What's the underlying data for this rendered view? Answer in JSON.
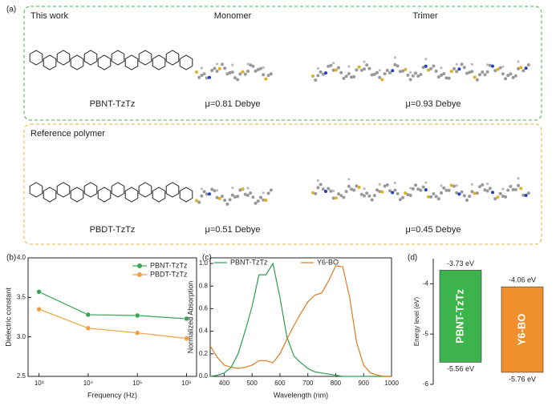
{
  "panel_labels": [
    "(a)",
    "(b)",
    "(c)",
    "(d)"
  ],
  "panel_a": {
    "top": {
      "heading": "This work",
      "molecule": "PBNT-TzTz",
      "monomer_title": "Monomer",
      "trimer_title": "Trimer",
      "monomer_dipole": "μ=0.81 Debye",
      "trimer_dipole": "μ=0.93 Debye"
    },
    "bottom": {
      "heading": "Reference polymer",
      "molecule": "PBDT-TzTz",
      "monomer_dipole": "μ=0.51 Debye",
      "trimer_dipole": "μ=0.45 Debye"
    }
  },
  "chart_data": [
    {
      "type": "line",
      "x_label": "Frequency (Hz)",
      "y_label": "Dielectric constant",
      "x_scale": "log",
      "x": [
        1000,
        10000,
        100000,
        1000000
      ],
      "series": [
        {
          "name": "PBNT-TzTz",
          "color": "#3aa655",
          "values": [
            3.57,
            3.28,
            3.27,
            3.23
          ]
        },
        {
          "name": "PBDT-TzTz",
          "color": "#f0a040",
          "values": [
            3.35,
            3.11,
            3.05,
            2.98
          ]
        }
      ],
      "xlim": [
        600,
        1600000
      ],
      "xticks": [
        {
          "value": 1000,
          "label": "10³"
        },
        {
          "value": 10000,
          "label": "10⁴"
        },
        {
          "value": 100000,
          "label": "10⁵"
        },
        {
          "value": 1000000,
          "label": "10⁶"
        }
      ],
      "ylim": [
        2.5,
        4.0
      ],
      "yticks": [
        {
          "value": 2.5,
          "label": "2.5"
        },
        {
          "value": 3.0,
          "label": "3.0"
        },
        {
          "value": 3.5,
          "label": "3.5"
        },
        {
          "value": 4.0,
          "label": "4.0"
        }
      ],
      "legend": "upper right"
    },
    {
      "type": "line",
      "x_label": "Wavelength (nm)",
      "y_label": "Normalized Absorption",
      "x": [
        350,
        375,
        400,
        425,
        450,
        475,
        500,
        525,
        550,
        575,
        600,
        625,
        650,
        675,
        700,
        725,
        750,
        775,
        800,
        825,
        850,
        875,
        900,
        925,
        950,
        975,
        1000
      ],
      "series": [
        {
          "name": "PBNT-TzTz",
          "color": "#2e9e4f",
          "values": [
            0.0,
            0.01,
            0.03,
            0.08,
            0.2,
            0.4,
            0.62,
            0.9,
            0.9,
            1.0,
            0.7,
            0.35,
            0.18,
            0.12,
            0.07,
            0.04,
            0.03,
            0.02,
            0.01,
            0,
            0,
            0,
            0,
            0,
            0,
            0,
            0
          ]
        },
        {
          "name": "Y6-BO",
          "color": "#e07a20",
          "values": [
            0.27,
            0.17,
            0.1,
            0.08,
            0.07,
            0.08,
            0.1,
            0.14,
            0.14,
            0.12,
            0.2,
            0.33,
            0.45,
            0.56,
            0.66,
            0.72,
            0.74,
            0.85,
            0.98,
            0.97,
            0.7,
            0.3,
            0.1,
            0.03,
            0.01,
            0,
            0
          ]
        }
      ],
      "xlim": [
        350,
        1000
      ],
      "xticks": [
        400,
        500,
        600,
        700,
        800,
        900,
        1000
      ],
      "ylim": [
        0,
        1.05
      ],
      "yticks": [
        {
          "value": 0,
          "label": "0.0"
        },
        {
          "value": 0.2,
          "label": "0.2"
        },
        {
          "value": 0.4,
          "label": "0.4"
        },
        {
          "value": 0.6,
          "label": "0.6"
        },
        {
          "value": 0.8,
          "label": "0.8"
        },
        {
          "value": 1.0,
          "label": "1.0"
        }
      ],
      "legend": "top"
    },
    {
      "type": "energy",
      "y_label": "Energy level (eV)",
      "categories": [
        "PBNT-TzTz",
        "Y6-BO"
      ],
      "colors": [
        "#3cb44b",
        "#f0902c"
      ],
      "lumo": [
        -3.73,
        -4.06
      ],
      "lumo_labels": [
        "-3.73 eV",
        "-4.06 eV"
      ],
      "homo": [
        -5.56,
        -5.76
      ],
      "homo_labels": [
        "-5.56 eV",
        "-5.76 eV"
      ],
      "ylim": [
        -6.0,
        -3.5
      ],
      "yticks": [
        -4,
        -5,
        -6
      ]
    }
  ]
}
